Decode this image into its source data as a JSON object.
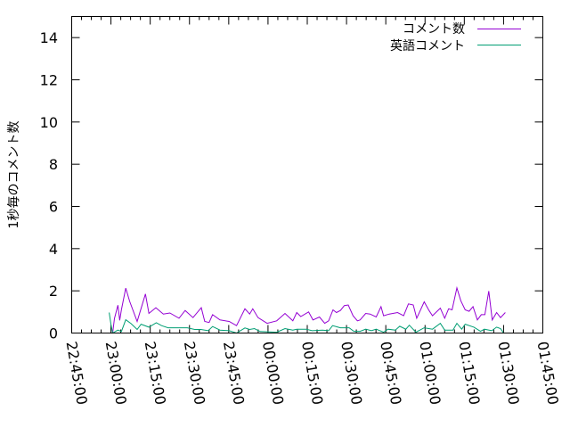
{
  "chart_data": {
    "type": "line",
    "title": "",
    "xlabel": "",
    "ylabel": "1秒毎のコメント数",
    "xlim": [
      "22:45:00",
      "01:45:00"
    ],
    "ylim": [
      0,
      15
    ],
    "x_ticks": [
      "22:45:00",
      "23:00:00",
      "23:15:00",
      "23:30:00",
      "23:45:00",
      "00:00:00",
      "00:15:00",
      "00:30:00",
      "00:45:00",
      "01:00:00",
      "01:15:00",
      "01:30:00",
      "01:45:00"
    ],
    "y_ticks": [
      "0",
      "2",
      "4",
      "6",
      "8",
      "10",
      "12",
      "14"
    ],
    "grid": false,
    "legend_position": "top-right",
    "series": [
      {
        "name": "コメント数",
        "color": "#9400D3",
        "points": [
          [
            "23:00:40",
            0
          ],
          [
            "23:01:20",
            0.69
          ],
          [
            "23:02:40",
            1.32
          ],
          [
            "23:03:20",
            0.6
          ],
          [
            "23:04:00",
            1.1
          ],
          [
            "23:05:40",
            2.13
          ],
          [
            "23:07:10",
            1.5
          ],
          [
            "23:10:00",
            0.55
          ],
          [
            "23:13:10",
            1.85
          ],
          [
            "23:14:30",
            0.93
          ],
          [
            "23:17:10",
            1.2
          ],
          [
            "23:20:00",
            0.9
          ],
          [
            "23:22:30",
            0.95
          ],
          [
            "23:26:00",
            0.7
          ],
          [
            "23:28:20",
            1.07
          ],
          [
            "23:31:20",
            0.73
          ],
          [
            "23:34:30",
            1.2
          ],
          [
            "23:35:50",
            0.55
          ],
          [
            "23:37:30",
            0.5
          ],
          [
            "23:38:50",
            0.87
          ],
          [
            "23:41:40",
            0.62
          ],
          [
            "23:45:10",
            0.55
          ],
          [
            "23:48:00",
            0.35
          ],
          [
            "23:51:10",
            1.15
          ],
          [
            "23:53:00",
            0.9
          ],
          [
            "23:54:10",
            1.15
          ],
          [
            "23:56:10",
            0.73
          ],
          [
            "23:59:40",
            0.46
          ],
          [
            "00:03:20",
            0.58
          ],
          [
            "00:06:30",
            0.93
          ],
          [
            "00:09:30",
            0.58
          ],
          [
            "00:11:00",
            0.97
          ],
          [
            "00:12:30",
            0.78
          ],
          [
            "00:15:30",
            1.0
          ],
          [
            "00:17:10",
            0.62
          ],
          [
            "00:19:40",
            0.76
          ],
          [
            "00:21:40",
            0.46
          ],
          [
            "00:23:10",
            0.58
          ],
          [
            "00:24:50",
            1.1
          ],
          [
            "00:26:10",
            0.97
          ],
          [
            "00:27:40",
            1.07
          ],
          [
            "00:29:10",
            1.3
          ],
          [
            "00:30:40",
            1.33
          ],
          [
            "00:32:30",
            0.82
          ],
          [
            "00:34:10",
            0.58
          ],
          [
            "00:35:10",
            0.62
          ],
          [
            "00:37:20",
            0.93
          ],
          [
            "00:39:00",
            0.9
          ],
          [
            "00:41:20",
            0.76
          ],
          [
            "00:43:10",
            1.25
          ],
          [
            "00:44:10",
            0.82
          ],
          [
            "00:46:20",
            0.9
          ],
          [
            "00:49:30",
            0.97
          ],
          [
            "00:51:50",
            0.82
          ],
          [
            "00:53:40",
            1.38
          ],
          [
            "00:55:30",
            1.33
          ],
          [
            "00:56:50",
            0.7
          ],
          [
            "00:59:40",
            1.48
          ],
          [
            "01:01:30",
            1.07
          ],
          [
            "01:02:50",
            0.82
          ],
          [
            "01:05:50",
            1.18
          ],
          [
            "01:07:30",
            0.7
          ],
          [
            "01:09:00",
            1.15
          ],
          [
            "01:10:20",
            1.1
          ],
          [
            "01:12:10",
            2.14
          ],
          [
            "01:13:40",
            1.53
          ],
          [
            "01:15:20",
            1.1
          ],
          [
            "01:16:50",
            1.03
          ],
          [
            "01:18:20",
            1.25
          ],
          [
            "01:20:00",
            0.62
          ],
          [
            "01:21:30",
            0.87
          ],
          [
            "01:22:50",
            0.87
          ],
          [
            "01:24:20",
            1.99
          ],
          [
            "01:25:40",
            0.62
          ],
          [
            "01:27:20",
            0.97
          ],
          [
            "01:28:50",
            0.73
          ],
          [
            "01:30:40",
            0.97
          ]
        ]
      },
      {
        "name": "英語コメント",
        "color": "#009E73",
        "points": [
          [
            "22:59:20",
            0.97
          ],
          [
            "23:00:00",
            0.4
          ],
          [
            "23:00:40",
            0
          ],
          [
            "23:02:40",
            0.14
          ],
          [
            "23:04:00",
            0.07
          ],
          [
            "23:05:40",
            0.63
          ],
          [
            "23:07:40",
            0.45
          ],
          [
            "23:10:00",
            0.17
          ],
          [
            "23:11:30",
            0.42
          ],
          [
            "23:14:30",
            0.28
          ],
          [
            "23:17:20",
            0.49
          ],
          [
            "23:19:20",
            0.35
          ],
          [
            "23:21:50",
            0.25
          ],
          [
            "23:29:10",
            0.25
          ],
          [
            "23:32:00",
            0.17
          ],
          [
            "23:34:20",
            0.17
          ],
          [
            "23:37:10",
            0.11
          ],
          [
            "23:38:50",
            0.31
          ],
          [
            "23:41:40",
            0.14
          ],
          [
            "23:45:10",
            0.11
          ],
          [
            "23:48:00",
            0
          ],
          [
            "23:51:10",
            0.24
          ],
          [
            "23:53:00",
            0.17
          ],
          [
            "23:54:50",
            0.21
          ],
          [
            "23:57:00",
            0.07
          ],
          [
            "00:03:20",
            0.04
          ],
          [
            "00:06:30",
            0.21
          ],
          [
            "00:09:30",
            0.14
          ],
          [
            "00:11:00",
            0.18
          ],
          [
            "00:14:40",
            0.18
          ],
          [
            "00:16:50",
            0.11
          ],
          [
            "00:20:50",
            0.14
          ],
          [
            "00:23:10",
            0.11
          ],
          [
            "00:24:40",
            0.35
          ],
          [
            "00:27:40",
            0.25
          ],
          [
            "00:31:00",
            0.25
          ],
          [
            "00:32:50",
            0.08
          ],
          [
            "00:35:10",
            0.08
          ],
          [
            "00:37:20",
            0.18
          ],
          [
            "00:39:30",
            0.11
          ],
          [
            "00:41:20",
            0.18
          ],
          [
            "00:44:10",
            0.04
          ],
          [
            "00:45:50",
            0.18
          ],
          [
            "00:48:40",
            0.14
          ],
          [
            "00:50:20",
            0.32
          ],
          [
            "00:52:40",
            0.18
          ],
          [
            "00:54:00",
            0.37
          ],
          [
            "00:56:30",
            0.04
          ],
          [
            "00:59:40",
            0.25
          ],
          [
            "01:02:50",
            0.18
          ],
          [
            "01:05:50",
            0.46
          ],
          [
            "01:07:30",
            0.14
          ],
          [
            "01:10:40",
            0.14
          ],
          [
            "01:12:10",
            0.46
          ],
          [
            "01:14:00",
            0.18
          ],
          [
            "01:15:20",
            0.42
          ],
          [
            "01:18:40",
            0.28
          ],
          [
            "01:21:10",
            0.08
          ],
          [
            "01:22:40",
            0.18
          ],
          [
            "01:25:30",
            0.11
          ],
          [
            "01:27:20",
            0.28
          ],
          [
            "01:28:50",
            0.21
          ],
          [
            "01:30:00",
            0
          ]
        ]
      }
    ]
  }
}
